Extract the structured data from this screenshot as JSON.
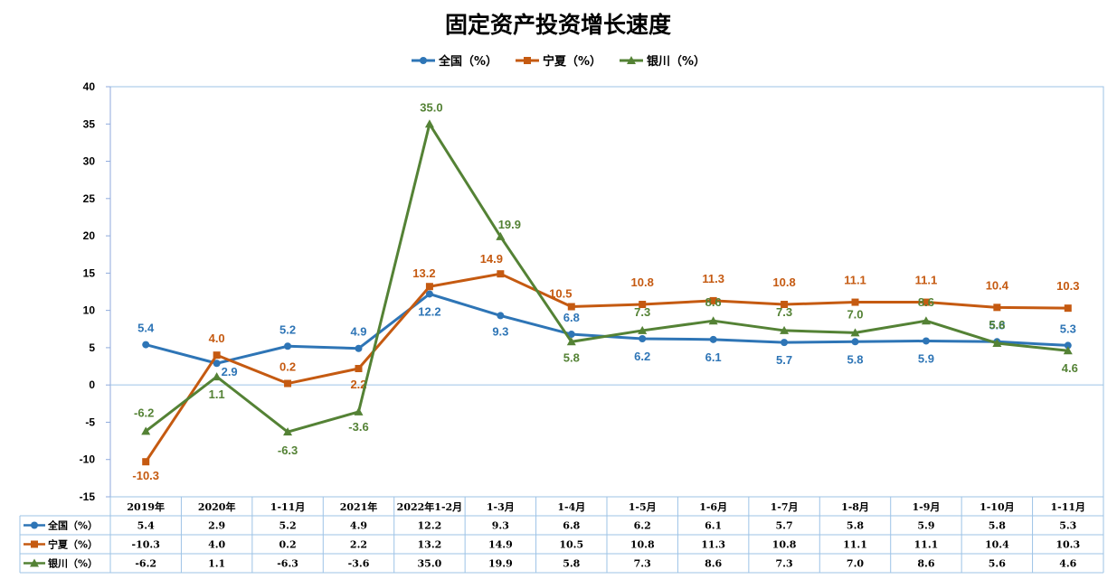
{
  "chart_data": {
    "type": "line",
    "title": "固定资产投资增长速度",
    "categories": [
      "2019年",
      "2020年",
      "1-11月",
      "2021年",
      "2022年1-2月",
      "1-3月",
      "1-4月",
      "1-5月",
      "1-6月",
      "1-7月",
      "1-8月",
      "1-9月",
      "1-10月",
      "1-11月"
    ],
    "ylim": [
      -15,
      40
    ],
    "yticks": [
      -15,
      -10,
      -5,
      0,
      5,
      10,
      15,
      20,
      25,
      30,
      35,
      40
    ],
    "grid": false,
    "legend_position": "top",
    "data_table": true,
    "series": [
      {
        "name": "全国（%）",
        "color": "#2e75b6",
        "marker": "circle",
        "values": [
          5.4,
          2.9,
          5.2,
          4.9,
          12.2,
          9.3,
          6.8,
          6.2,
          6.1,
          5.7,
          5.8,
          5.9,
          5.8,
          5.3
        ]
      },
      {
        "name": "宁夏（%）",
        "color": "#c55a11",
        "marker": "square",
        "values": [
          -10.3,
          4.0,
          0.2,
          2.2,
          13.2,
          14.9,
          10.5,
          10.8,
          11.3,
          10.8,
          11.1,
          11.1,
          10.4,
          10.3
        ]
      },
      {
        "name": "银川（%）",
        "color": "#548235",
        "marker": "triangle",
        "values": [
          -6.2,
          1.1,
          -6.3,
          -3.6,
          35.0,
          19.9,
          5.8,
          7.3,
          8.6,
          7.3,
          7.0,
          8.6,
          5.6,
          4.6
        ]
      }
    ]
  }
}
